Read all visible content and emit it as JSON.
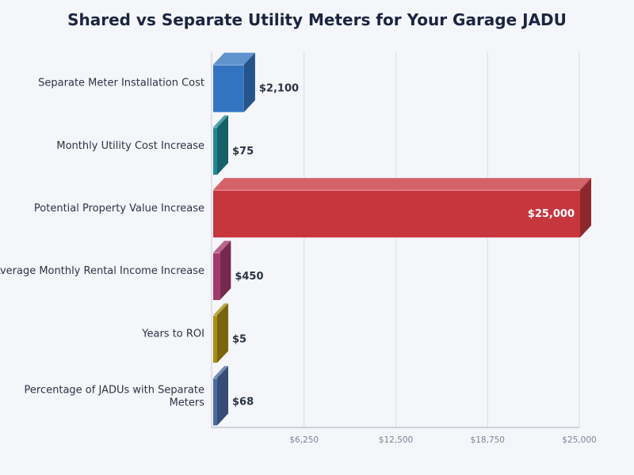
{
  "chart_data": {
    "type": "bar",
    "orientation": "horizontal",
    "style": "3d",
    "title": "Shared vs Separate Utility Meters for Your Garage JADU",
    "xlabel": "",
    "ylabel": "",
    "xlim": [
      0,
      25000
    ],
    "grid": "vertical",
    "legend": "none",
    "x_ticks": [
      6250,
      12500,
      18750,
      25000
    ],
    "x_tick_labels": [
      "$6,250",
      "$12,500",
      "$18,750",
      "$25,000"
    ],
    "categories": [
      "Separate Meter Installation Cost",
      "Monthly Utility Cost Increase",
      "Potential Property Value Increase",
      "Average Monthly Rental Income Increase",
      "Years to ROI",
      "Percentage of JADUs with Separate Meters"
    ],
    "category_label_lines": [
      [
        "Separate Meter Installation Cost"
      ],
      [
        "Monthly Utility Cost Increase"
      ],
      [
        "Potential Property Value Increase"
      ],
      [
        "Average Monthly Rental Income Increase"
      ],
      [
        "Years to ROI"
      ],
      [
        "Percentage of JADUs with Separate",
        "Meters"
      ]
    ],
    "values": [
      2100,
      75,
      25000,
      450,
      5,
      68
    ],
    "value_labels": [
      "$2,100",
      "$75",
      "$25,000",
      "$450",
      "$5",
      "$68"
    ],
    "colors": [
      "#3274c0",
      "#1e8791",
      "#c6373d",
      "#a5386b",
      "#a88c12",
      "#4c6ba2"
    ]
  }
}
